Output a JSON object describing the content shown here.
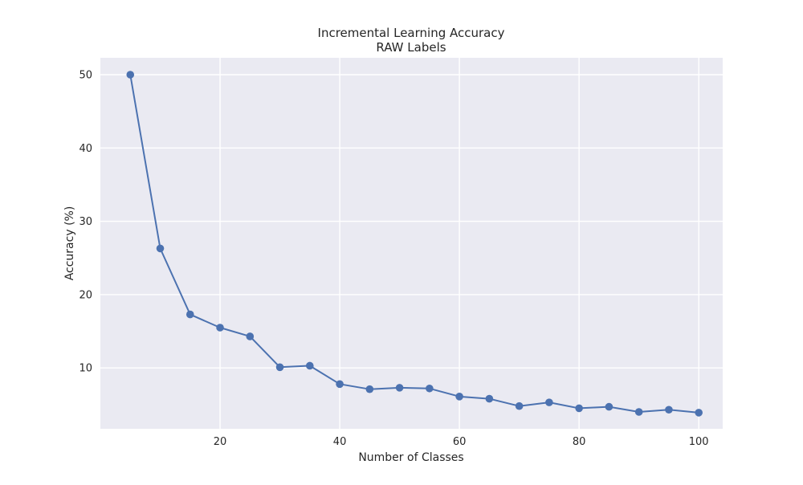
{
  "chart_data": {
    "type": "line",
    "title": "Incremental Learning Accuracy",
    "subtitle": "RAW Labels",
    "xlabel": "Number of Classes",
    "ylabel": "Accuracy (%)",
    "xlim": [
      0,
      104
    ],
    "ylim": [
      1.7,
      52.3
    ],
    "xticks": [
      20,
      40,
      60,
      80,
      100
    ],
    "yticks": [
      10,
      20,
      30,
      40,
      50
    ],
    "grid": true,
    "series": [
      {
        "color": "#4c72b0",
        "marker": "circle",
        "x": [
          5,
          10,
          15,
          20,
          25,
          30,
          35,
          40,
          45,
          50,
          55,
          60,
          65,
          70,
          75,
          80,
          85,
          90,
          95,
          100
        ],
        "y": [
          50.0,
          26.3,
          17.3,
          15.5,
          14.3,
          10.1,
          10.3,
          7.8,
          7.1,
          7.3,
          7.2,
          6.1,
          5.8,
          4.8,
          5.3,
          4.5,
          4.7,
          4.0,
          4.3,
          3.9
        ]
      }
    ],
    "background_color": "#eaeaf2",
    "grid_color": "#ffffff"
  }
}
